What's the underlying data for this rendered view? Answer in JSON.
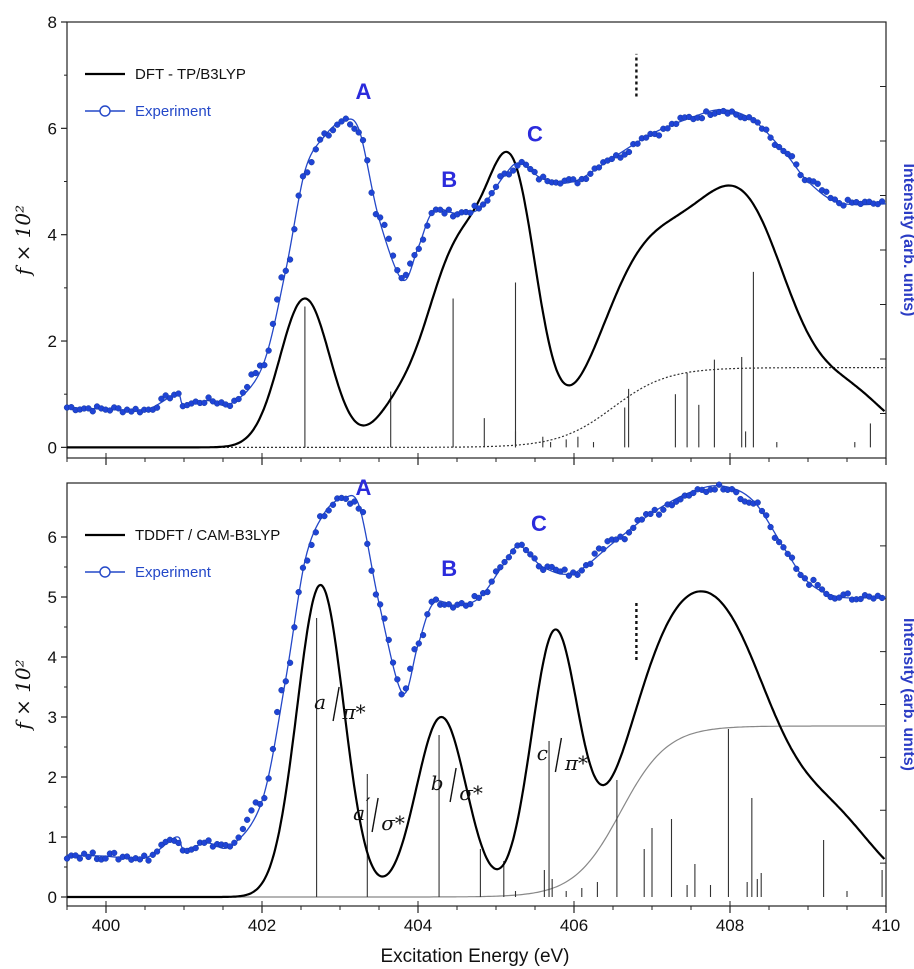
{
  "colors": {
    "theory": "#000000",
    "experiment": "#2448c8",
    "experiment_marker": "#1f44d6",
    "peak_letters": "#2b2bdc",
    "right_axis_label": "#2b3cc4",
    "sticks": "#333333",
    "step": "#555555"
  },
  "figure": {
    "xlabel": "Excitation  Energy (eV)",
    "x_ticks": [
      "400",
      "402",
      "404",
      "406",
      "408",
      "410"
    ]
  },
  "chart_data": [
    {
      "type": "line",
      "panel": "top",
      "ylabel": "f × 10²",
      "ylabel_right": "Intensity (arb. units)",
      "xlim": [
        399.5,
        410
      ],
      "ylim": [
        -0.2,
        8
      ],
      "y_ticks": [
        "0",
        "2",
        "4",
        "6",
        "8"
      ],
      "legend": [
        {
          "label": "DFT - TP/B3LYP",
          "style": "line",
          "color": "#000000"
        },
        {
          "label": "Experiment",
          "style": "line-marker",
          "color": "#2448c8"
        }
      ],
      "legend_placement": "top-left",
      "annotations": [
        {
          "label": "A",
          "x": 403.3,
          "y": 6.55
        },
        {
          "label": "B",
          "x": 404.4,
          "y": 4.9
        },
        {
          "label": "C",
          "x": 405.5,
          "y": 5.75
        }
      ],
      "ionization_marker": {
        "x": 406.8,
        "y_from": 6.6,
        "y_to": 7.4,
        "style": "dotted"
      },
      "theory_peaks": [
        {
          "x": 402.55,
          "amp": 2.8,
          "width": 0.32
        },
        {
          "x": 403.7,
          "amp": 0.55,
          "width": 0.28
        },
        {
          "x": 404.45,
          "amp": 3.3,
          "width": 0.38
        },
        {
          "x": 404.9,
          "amp": 1.2,
          "width": 0.3
        },
        {
          "x": 405.25,
          "amp": 4.3,
          "width": 0.3
        },
        {
          "x": 406.8,
          "amp": 2.8,
          "width": 0.55
        },
        {
          "x": 407.8,
          "amp": 3.2,
          "width": 0.6
        },
        {
          "x": 408.4,
          "amp": 2.2,
          "width": 0.5
        },
        {
          "x": 409.5,
          "amp": 1.0,
          "width": 0.5
        }
      ],
      "theory_step": {
        "height": 1.5,
        "center": 406.5,
        "width": 0.35,
        "style": "dotted"
      },
      "experiment": {
        "x": [
          399.5,
          400.0,
          400.5,
          400.9,
          401.0,
          401.3,
          401.6,
          402.0,
          402.3,
          402.55,
          402.8,
          403.05,
          403.25,
          403.5,
          403.8,
          404.0,
          404.2,
          404.5,
          404.8,
          405.1,
          405.3,
          405.6,
          406.0,
          406.5,
          407.0,
          407.5,
          407.9,
          408.3,
          408.7,
          409.0,
          409.4,
          410.0
        ],
        "y": [
          0.75,
          0.72,
          0.7,
          1.0,
          0.8,
          0.88,
          0.82,
          1.5,
          3.3,
          5.2,
          5.85,
          6.15,
          5.95,
          4.3,
          3.15,
          3.75,
          4.45,
          4.4,
          4.5,
          5.1,
          5.35,
          5.05,
          5.0,
          5.45,
          5.9,
          6.2,
          6.35,
          6.15,
          5.55,
          5.0,
          4.6,
          4.58
        ]
      },
      "sticks": [
        {
          "x": 402.55,
          "h": 2.65
        },
        {
          "x": 403.65,
          "h": 1.05
        },
        {
          "x": 404.45,
          "h": 2.8
        },
        {
          "x": 404.85,
          "h": 0.55
        },
        {
          "x": 405.25,
          "h": 3.1
        },
        {
          "x": 405.25,
          "h": 0.3
        },
        {
          "x": 405.6,
          "h": 0.2
        },
        {
          "x": 405.7,
          "h": 0.1
        },
        {
          "x": 405.9,
          "h": 0.15
        },
        {
          "x": 406.05,
          "h": 0.2
        },
        {
          "x": 406.25,
          "h": 0.1
        },
        {
          "x": 406.65,
          "h": 0.75
        },
        {
          "x": 406.7,
          "h": 1.1
        },
        {
          "x": 407.3,
          "h": 1.0
        },
        {
          "x": 407.45,
          "h": 1.4
        },
        {
          "x": 407.6,
          "h": 0.8
        },
        {
          "x": 407.8,
          "h": 1.65
        },
        {
          "x": 408.15,
          "h": 1.7
        },
        {
          "x": 408.2,
          "h": 0.3
        },
        {
          "x": 408.3,
          "h": 3.3
        },
        {
          "x": 408.6,
          "h": 0.1
        },
        {
          "x": 409.6,
          "h": 0.1
        },
        {
          "x": 409.8,
          "h": 0.45
        }
      ]
    },
    {
      "type": "line",
      "panel": "bottom",
      "ylabel": "f × 10²",
      "ylabel_right": "Intensity (arb. units)",
      "xlim": [
        399.5,
        410
      ],
      "ylim": [
        -0.15,
        6.9
      ],
      "y_ticks": [
        "0",
        "1",
        "2",
        "3",
        "4",
        "5",
        "6"
      ],
      "legend": [
        {
          "label": "TDDFT / CAM-B3LYP",
          "style": "line",
          "color": "#000000"
        },
        {
          "label": "Experiment",
          "style": "line-marker",
          "color": "#2448c8"
        }
      ],
      "legend_placement": "top-left",
      "annotations": [
        {
          "label": "A",
          "x": 403.3,
          "y": 6.7
        },
        {
          "label": "B",
          "x": 404.4,
          "y": 5.35
        },
        {
          "label": "C",
          "x": 405.55,
          "y": 6.1
        }
      ],
      "ionization_marker": {
        "x": 406.8,
        "y_from": 3.95,
        "y_to": 4.95,
        "style": "dotted"
      },
      "assignments": [
        {
          "letter": "a",
          "prime": false,
          "orbital": "π*",
          "x": 402.95,
          "y": 3.0
        },
        {
          "letter": "a",
          "prime": true,
          "orbital": "σ*",
          "x": 403.45,
          "y": 1.15
        },
        {
          "letter": "b",
          "prime": false,
          "orbital": "σ*",
          "x": 404.45,
          "y": 1.65
        },
        {
          "letter": "c",
          "prime": false,
          "orbital": "π*",
          "x": 405.8,
          "y": 2.15
        }
      ],
      "theory_peaks": [
        {
          "x": 402.75,
          "amp": 5.2,
          "width": 0.3
        },
        {
          "x": 404.3,
          "amp": 3.0,
          "width": 0.32
        },
        {
          "x": 405.75,
          "amp": 4.3,
          "width": 0.3
        },
        {
          "x": 407.1,
          "amp": 3.0,
          "width": 0.55
        },
        {
          "x": 408.0,
          "amp": 3.8,
          "width": 0.6
        },
        {
          "x": 409.3,
          "amp": 1.2,
          "width": 0.55
        }
      ],
      "theory_step": {
        "height": 2.85,
        "center": 406.6,
        "width": 0.3,
        "style": "solid-grey"
      },
      "experiment": {
        "x": [
          399.5,
          400.0,
          400.5,
          400.9,
          401.0,
          401.3,
          401.6,
          402.0,
          402.3,
          402.55,
          402.8,
          403.05,
          403.25,
          403.5,
          403.8,
          404.0,
          404.2,
          404.5,
          404.8,
          405.1,
          405.3,
          405.6,
          406.0,
          406.5,
          407.0,
          407.5,
          407.9,
          408.3,
          408.7,
          409.0,
          409.4,
          410.0
        ],
        "y": [
          0.7,
          0.68,
          0.65,
          1.0,
          0.8,
          0.9,
          0.85,
          1.6,
          3.6,
          5.6,
          6.4,
          6.65,
          6.5,
          4.9,
          3.4,
          4.2,
          4.9,
          4.85,
          5.0,
          5.55,
          5.85,
          5.5,
          5.4,
          5.9,
          6.4,
          6.75,
          6.85,
          6.6,
          5.8,
          5.25,
          5.0,
          5.0
        ]
      },
      "sticks": [
        {
          "x": 402.7,
          "h": 4.65
        },
        {
          "x": 403.35,
          "h": 2.05
        },
        {
          "x": 404.27,
          "h": 2.7
        },
        {
          "x": 404.8,
          "h": 0.8
        },
        {
          "x": 405.1,
          "h": 0.6
        },
        {
          "x": 405.25,
          "h": 0.1
        },
        {
          "x": 405.62,
          "h": 0.45
        },
        {
          "x": 405.68,
          "h": 2.6
        },
        {
          "x": 405.72,
          "h": 0.3
        },
        {
          "x": 405.9,
          "h": 0.1
        },
        {
          "x": 406.1,
          "h": 0.15
        },
        {
          "x": 406.3,
          "h": 0.25
        },
        {
          "x": 406.55,
          "h": 1.95
        },
        {
          "x": 406.9,
          "h": 0.8
        },
        {
          "x": 407.0,
          "h": 1.15
        },
        {
          "x": 407.25,
          "h": 1.3
        },
        {
          "x": 407.45,
          "h": 0.2
        },
        {
          "x": 407.55,
          "h": 0.55
        },
        {
          "x": 407.75,
          "h": 0.2
        },
        {
          "x": 407.98,
          "h": 2.8
        },
        {
          "x": 408.22,
          "h": 0.25
        },
        {
          "x": 408.28,
          "h": 1.65
        },
        {
          "x": 408.35,
          "h": 0.3
        },
        {
          "x": 408.4,
          "h": 0.4
        },
        {
          "x": 409.2,
          "h": 0.95
        },
        {
          "x": 409.5,
          "h": 0.1
        },
        {
          "x": 409.95,
          "h": 0.45
        }
      ]
    }
  ]
}
